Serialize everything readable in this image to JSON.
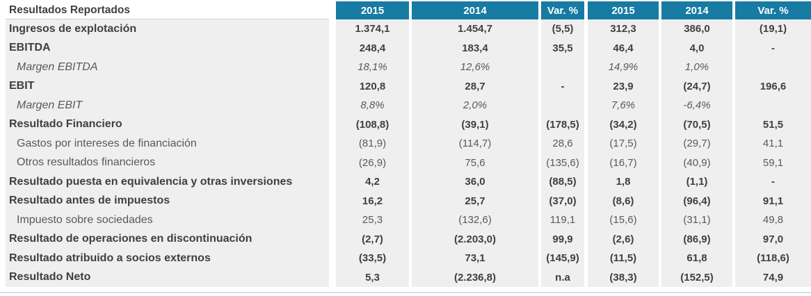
{
  "table": {
    "title": "Resultados Reportados",
    "columns": [
      "2015",
      "2014",
      "Var. %",
      "2015",
      "2014",
      "Var. %"
    ],
    "rows": [
      {
        "label": "Ingresos de explotación",
        "style": "bold",
        "values": [
          "1.374,1",
          "1.454,7",
          "(5,5)",
          "312,3",
          "386,0",
          "(19,1)"
        ]
      },
      {
        "label": "EBITDA",
        "style": "bold",
        "values": [
          "248,4",
          "183,4",
          "35,5",
          "46,4",
          "4,0",
          "-"
        ]
      },
      {
        "label": "Margen EBITDA",
        "style": "italic",
        "values": [
          "18,1%",
          "12,6%",
          "",
          "14,9%",
          "1,0%",
          ""
        ]
      },
      {
        "label": "EBIT",
        "style": "bold",
        "values": [
          "120,8",
          "28,7",
          "-",
          "23,9",
          "(24,7)",
          "196,6"
        ]
      },
      {
        "label": "Margen EBIT",
        "style": "italic",
        "values": [
          "8,8%",
          "2,0%",
          "",
          "7,6%",
          "-6,4%",
          ""
        ]
      },
      {
        "label": "Resultado Financiero",
        "style": "bold",
        "values": [
          "(108,8)",
          "(39,1)",
          "(178,5)",
          "(34,2)",
          "(70,5)",
          "51,5"
        ]
      },
      {
        "label": "Gastos por intereses de financiación",
        "style": "plain",
        "values": [
          "(81,9)",
          "(114,7)",
          "28,6",
          "(17,5)",
          "(29,7)",
          "41,1"
        ]
      },
      {
        "label": "Otros resultados financieros",
        "style": "plain",
        "values": [
          "(26,9)",
          "75,6",
          "(135,6)",
          "(16,7)",
          "(40,9)",
          "59,1"
        ]
      },
      {
        "label": "Resultado puesta en equivalencia y otras inversiones",
        "style": "bold",
        "values": [
          "4,2",
          "36,0",
          "(88,5)",
          "1,8",
          "(1,1)",
          "-"
        ]
      },
      {
        "label": "Resultado antes de impuestos",
        "style": "bold",
        "values": [
          "16,2",
          "25,7",
          "(37,0)",
          "(8,6)",
          "(96,4)",
          "91,1"
        ]
      },
      {
        "label": "Impuesto sobre sociedades",
        "style": "plain",
        "values": [
          "25,3",
          "(132,6)",
          "119,1",
          "(15,6)",
          "(31,1)",
          "49,8"
        ]
      },
      {
        "label": "Resultado de operaciones en discontinuación",
        "style": "bold",
        "values": [
          "(2,7)",
          "(2.203,0)",
          "99,9",
          "(2,6)",
          "(86,9)",
          "97,0"
        ]
      },
      {
        "label": "Resultado atribuido a socios externos",
        "style": "bold",
        "values": [
          "(33,5)",
          "73,1",
          "(145,9)",
          "(11,5)",
          "61,8",
          "(118,6)"
        ]
      },
      {
        "label": "Resultado Neto",
        "style": "bold",
        "values": [
          "5,3",
          "(2.236,8)",
          "n.a",
          "(38,3)",
          "(152,5)",
          "74,9"
        ]
      }
    ]
  },
  "colors": {
    "header_bg": "#177ba3",
    "row_bg": "#efefef",
    "bold_text": "#404040",
    "regular_text": "#595959",
    "bottom_strip": "#cfe2ec"
  }
}
